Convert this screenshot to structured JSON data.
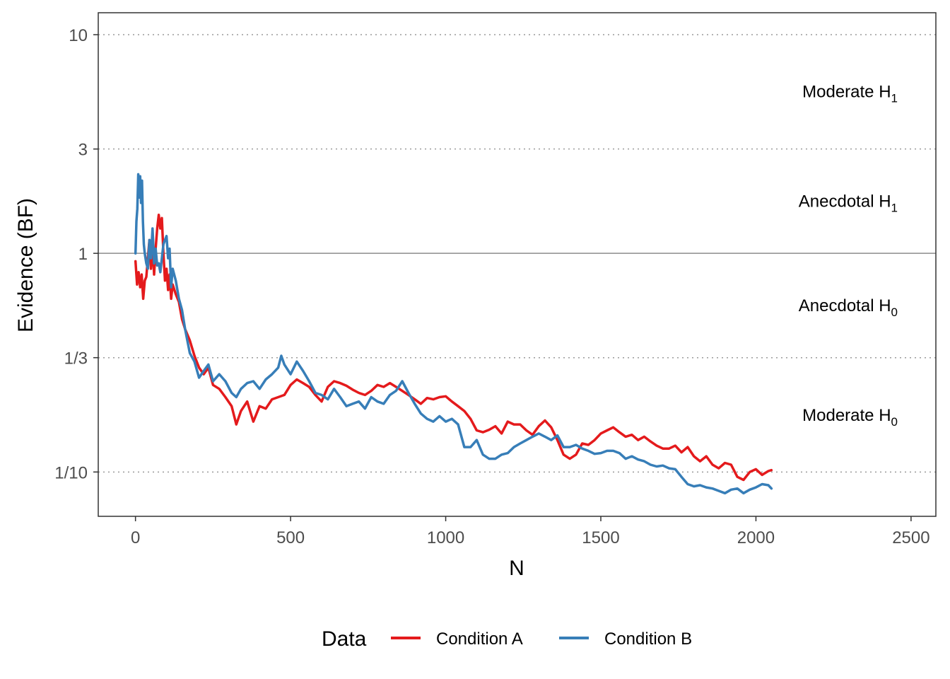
{
  "chart_data": {
    "type": "line",
    "xlabel": "N",
    "ylabel": "Evidence (BF)",
    "xlim": [
      -120,
      2580
    ],
    "ylim": [
      0.0627,
      12.6
    ],
    "y_scale": "log",
    "x_ticks": [
      0,
      500,
      1000,
      1500,
      2000,
      2500
    ],
    "x_tick_labels": [
      "0",
      "500",
      "1000",
      "1500",
      "2000",
      "2500"
    ],
    "y_ticks": [
      0.1,
      0.3333,
      1,
      3,
      10
    ],
    "y_tick_labels": [
      "1/10",
      "1/3",
      "1",
      "3",
      "10"
    ],
    "grid": false,
    "reference_lines": [
      {
        "y": 10,
        "style": "dotted"
      },
      {
        "y": 3,
        "style": "dotted"
      },
      {
        "y": 1,
        "style": "solid"
      },
      {
        "y": 0.3333,
        "style": "dotted"
      },
      {
        "y": 0.1,
        "style": "dotted"
      }
    ],
    "region_labels": [
      {
        "base": "Moderate H",
        "sub": "1",
        "y": 5.5
      },
      {
        "base": "Anecdotal H",
        "sub": "1",
        "y": 1.73
      },
      {
        "base": "Anecdotal H",
        "sub": "0",
        "y": 0.577
      },
      {
        "base": "Moderate H",
        "sub": "0",
        "y": 0.182
      }
    ],
    "legend": {
      "title": "Data",
      "position": "bottom"
    },
    "series": [
      {
        "name": "Condition A",
        "color": "#E41A1C",
        "x": [
          0,
          5,
          10,
          15,
          20,
          25,
          30,
          35,
          40,
          45,
          50,
          55,
          60,
          65,
          70,
          75,
          80,
          85,
          90,
          95,
          100,
          105,
          110,
          115,
          120,
          130,
          140,
          150,
          160,
          175,
          190,
          205,
          220,
          235,
          250,
          270,
          290,
          310,
          325,
          340,
          360,
          380,
          400,
          420,
          440,
          460,
          480,
          500,
          520,
          540,
          560,
          580,
          600,
          620,
          640,
          660,
          680,
          700,
          720,
          740,
          760,
          780,
          800,
          820,
          840,
          860,
          880,
          900,
          920,
          940,
          960,
          980,
          1000,
          1020,
          1040,
          1060,
          1080,
          1100,
          1120,
          1140,
          1160,
          1180,
          1200,
          1220,
          1240,
          1260,
          1280,
          1300,
          1320,
          1340,
          1360,
          1380,
          1400,
          1420,
          1440,
          1460,
          1480,
          1500,
          1520,
          1540,
          1560,
          1580,
          1600,
          1620,
          1640,
          1660,
          1680,
          1700,
          1720,
          1740,
          1760,
          1780,
          1800,
          1820,
          1840,
          1860,
          1880,
          1900,
          1920,
          1940,
          1960,
          1980,
          2000,
          2020,
          2040,
          2050
        ],
        "y": [
          0.92,
          0.72,
          0.82,
          0.7,
          0.8,
          0.62,
          0.75,
          0.78,
          0.95,
          1.15,
          0.85,
          1.1,
          0.8,
          1.05,
          1.3,
          1.5,
          1.3,
          1.45,
          1.0,
          0.75,
          0.85,
          0.68,
          0.8,
          0.62,
          0.72,
          0.65,
          0.6,
          0.5,
          0.45,
          0.4,
          0.34,
          0.3,
          0.28,
          0.3,
          0.25,
          0.24,
          0.22,
          0.2,
          0.165,
          0.19,
          0.21,
          0.17,
          0.2,
          0.195,
          0.215,
          0.22,
          0.225,
          0.25,
          0.265,
          0.255,
          0.245,
          0.225,
          0.21,
          0.245,
          0.26,
          0.255,
          0.248,
          0.238,
          0.23,
          0.225,
          0.235,
          0.25,
          0.245,
          0.255,
          0.245,
          0.235,
          0.225,
          0.215,
          0.205,
          0.218,
          0.215,
          0.22,
          0.222,
          0.21,
          0.2,
          0.19,
          0.175,
          0.155,
          0.152,
          0.156,
          0.162,
          0.15,
          0.17,
          0.165,
          0.165,
          0.155,
          0.148,
          0.162,
          0.172,
          0.16,
          0.14,
          0.12,
          0.115,
          0.12,
          0.135,
          0.133,
          0.14,
          0.15,
          0.155,
          0.16,
          0.152,
          0.145,
          0.148,
          0.14,
          0.145,
          0.138,
          0.132,
          0.128,
          0.128,
          0.132,
          0.123,
          0.13,
          0.118,
          0.112,
          0.118,
          0.108,
          0.104,
          0.11,
          0.108,
          0.095,
          0.092,
          0.1,
          0.103,
          0.097,
          0.101,
          0.102
        ]
      },
      {
        "name": "Condition B",
        "color": "#377EB8",
        "x": [
          0,
          3,
          6,
          9,
          12,
          15,
          18,
          21,
          24,
          27,
          30,
          35,
          40,
          45,
          50,
          55,
          60,
          65,
          70,
          75,
          80,
          85,
          90,
          95,
          100,
          105,
          110,
          115,
          120,
          130,
          140,
          150,
          160,
          175,
          190,
          205,
          220,
          235,
          250,
          270,
          290,
          310,
          325,
          340,
          360,
          380,
          400,
          420,
          440,
          460,
          470,
          480,
          500,
          520,
          540,
          560,
          580,
          600,
          620,
          640,
          660,
          680,
          700,
          720,
          740,
          760,
          780,
          800,
          820,
          840,
          860,
          880,
          900,
          920,
          940,
          960,
          980,
          1000,
          1020,
          1040,
          1060,
          1080,
          1100,
          1120,
          1140,
          1160,
          1180,
          1200,
          1220,
          1240,
          1260,
          1280,
          1300,
          1320,
          1340,
          1360,
          1380,
          1400,
          1420,
          1440,
          1460,
          1480,
          1500,
          1520,
          1540,
          1560,
          1580,
          1600,
          1620,
          1640,
          1660,
          1680,
          1700,
          1720,
          1740,
          1760,
          1780,
          1800,
          1820,
          1840,
          1860,
          1880,
          1900,
          1920,
          1940,
          1960,
          1980,
          2000,
          2020,
          2040,
          2050
        ],
        "y": [
          1.0,
          1.4,
          1.6,
          2.3,
          1.8,
          2.25,
          1.7,
          2.15,
          1.4,
          1.1,
          1.0,
          0.9,
          0.85,
          1.15,
          0.95,
          1.3,
          0.9,
          1.05,
          0.88,
          0.9,
          0.82,
          0.95,
          1.1,
          1.15,
          1.2,
          0.95,
          1.05,
          0.7,
          0.85,
          0.75,
          0.62,
          0.55,
          0.45,
          0.35,
          0.32,
          0.27,
          0.29,
          0.31,
          0.26,
          0.28,
          0.26,
          0.23,
          0.22,
          0.24,
          0.255,
          0.26,
          0.24,
          0.265,
          0.28,
          0.3,
          0.34,
          0.31,
          0.28,
          0.32,
          0.29,
          0.26,
          0.23,
          0.225,
          0.215,
          0.24,
          0.22,
          0.2,
          0.205,
          0.21,
          0.195,
          0.22,
          0.21,
          0.205,
          0.225,
          0.235,
          0.26,
          0.23,
          0.205,
          0.185,
          0.175,
          0.17,
          0.18,
          0.17,
          0.175,
          0.165,
          0.13,
          0.13,
          0.14,
          0.12,
          0.115,
          0.115,
          0.12,
          0.122,
          0.13,
          0.135,
          0.14,
          0.145,
          0.15,
          0.145,
          0.14,
          0.147,
          0.13,
          0.13,
          0.133,
          0.128,
          0.125,
          0.121,
          0.122,
          0.125,
          0.125,
          0.122,
          0.115,
          0.118,
          0.114,
          0.112,
          0.108,
          0.106,
          0.107,
          0.104,
          0.103,
          0.095,
          0.088,
          0.086,
          0.087,
          0.085,
          0.084,
          0.082,
          0.08,
          0.083,
          0.084,
          0.08,
          0.083,
          0.085,
          0.088,
          0.087,
          0.084
        ]
      }
    ]
  }
}
